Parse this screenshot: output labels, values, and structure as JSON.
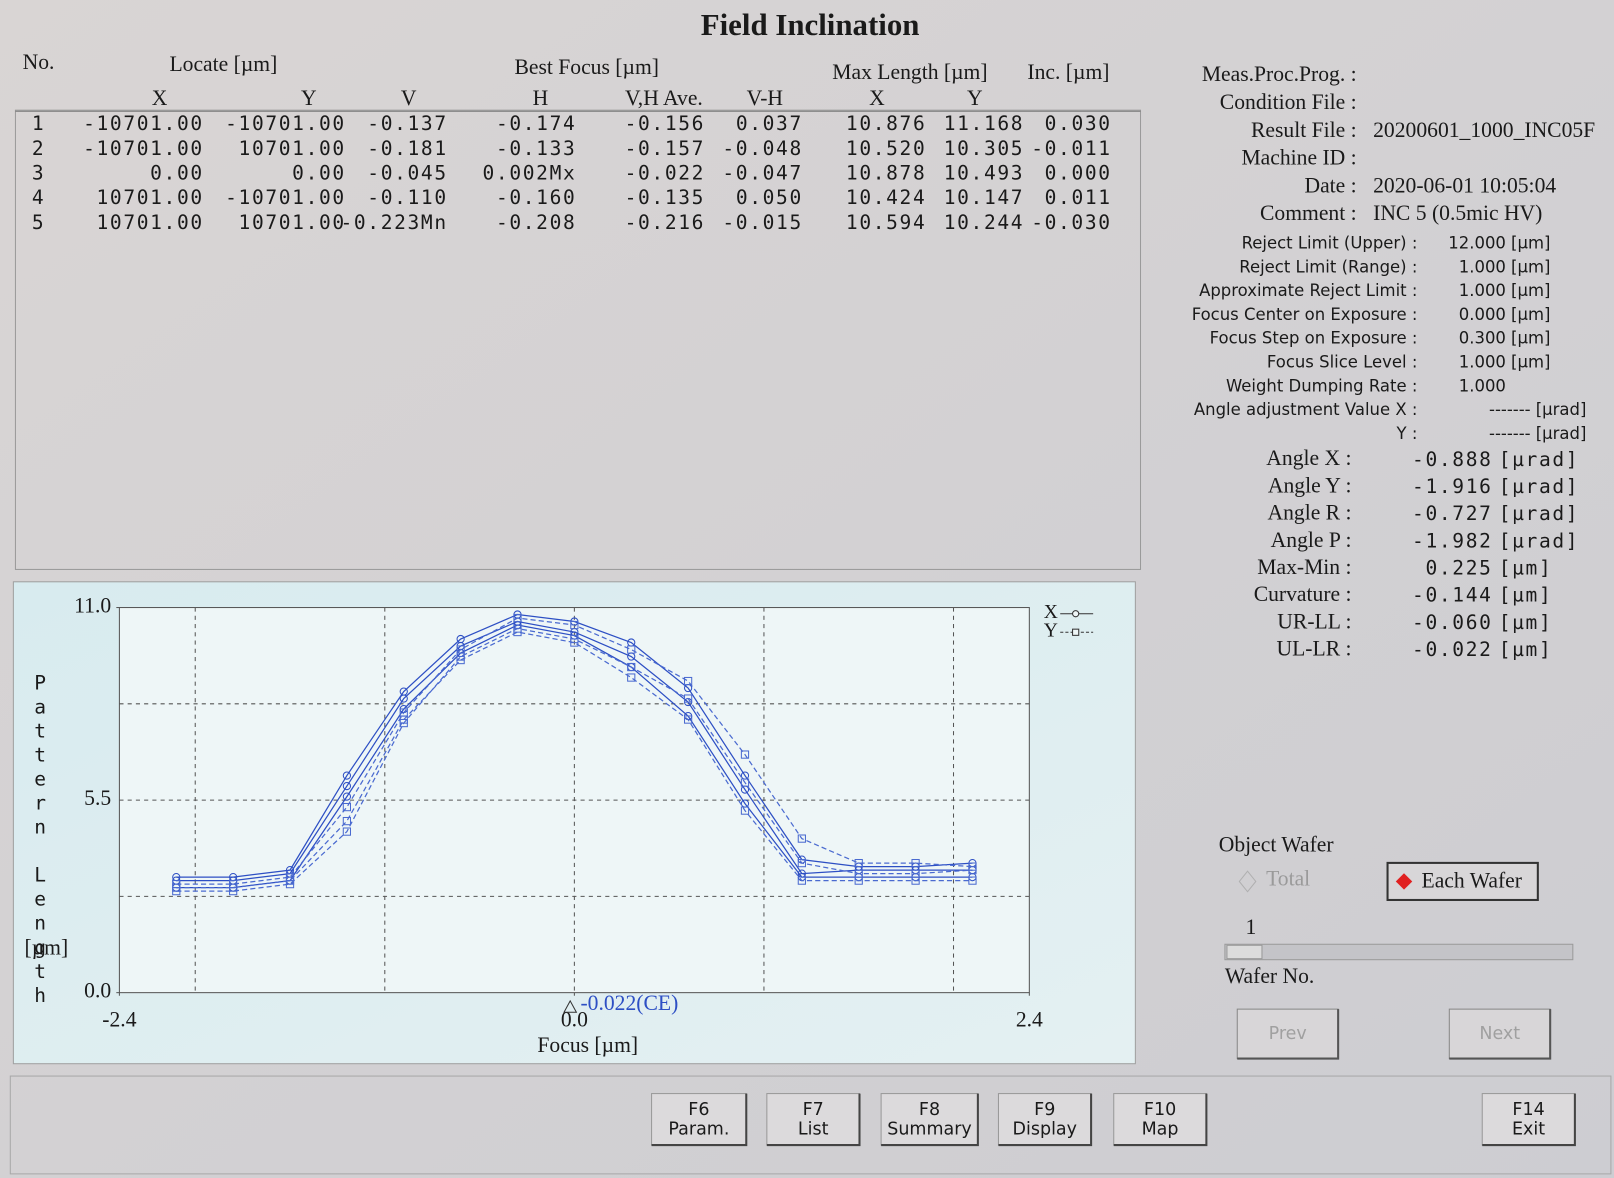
{
  "title": "Field Inclination",
  "table": {
    "header": {
      "no": "No.",
      "locate": "Locate [µm]",
      "best_focus": "Best Focus [µm]",
      "max_length": "Max Length [µm]",
      "inc": "Inc. [µm]",
      "columns": [
        "X",
        "Y",
        "V",
        "H",
        "V,H Ave.",
        "V-H",
        "X",
        "Y"
      ]
    },
    "rows": [
      [
        "1",
        "-10701.00",
        "-10701.00",
        "-0.137",
        "-0.174",
        "-0.156",
        "0.037",
        "10.876",
        "11.168",
        "0.030"
      ],
      [
        "2",
        "-10701.00",
        "10701.00",
        "-0.181",
        "-0.133",
        "-0.157",
        "-0.048",
        "10.520",
        "10.305",
        "-0.011"
      ],
      [
        "3",
        "0.00",
        "0.00",
        "-0.045",
        "0.002Mx",
        "-0.022",
        "-0.047",
        "10.878",
        "10.493",
        "0.000"
      ],
      [
        "4",
        "10701.00",
        "-10701.00",
        "-0.110",
        "-0.160",
        "-0.135",
        "0.050",
        "10.424",
        "10.147",
        "0.011"
      ],
      [
        "5",
        "10701.00",
        "10701.00",
        "-0.223Mn",
        "-0.208",
        "-0.216",
        "-0.015",
        "10.594",
        "10.244",
        "-0.030"
      ]
    ]
  },
  "info": {
    "files": [
      {
        "label": "Meas.Proc.Prog. :"
      },
      {
        "label": "Condition File :"
      },
      {
        "label": "Result File :",
        "value": "20200601_1000_INC05F"
      },
      {
        "label": "Machine ID :"
      },
      {
        "label": "Date :",
        "value": "2020-06-01 10:05:04"
      },
      {
        "label": "Comment :",
        "value": "INC 5 (0.5mic HV)"
      }
    ],
    "settings": [
      {
        "label": "Reject Limit (Upper) :",
        "value": "12.000",
        "unit": "[µm]"
      },
      {
        "label": "Reject Limit (Range) :",
        "value": "1.000",
        "unit": "[µm]"
      },
      {
        "label": "Approximate Reject Limit :",
        "value": "1.000",
        "unit": "[µm]"
      },
      {
        "label": "Focus Center on Exposure :",
        "value": "0.000",
        "unit": "[µm]"
      },
      {
        "label": "Focus Step on Exposure :",
        "value": "0.300",
        "unit": "[µm]"
      },
      {
        "label": "Focus Slice Level :",
        "value": "1.000",
        "unit": "[µm]"
      },
      {
        "label": "Weight Dumping Rate :",
        "value": "1.000"
      },
      {
        "label": "Angle adjustment Value X :",
        "value": "-------",
        "unit": "[µrad]"
      },
      {
        "label": "Y :",
        "value": "-------",
        "unit": "[µrad]"
      }
    ],
    "results": [
      {
        "label": "Angle X :",
        "value": "-0.888",
        "unit": "[µrad]"
      },
      {
        "label": "Angle Y :",
        "value": "-1.916",
        "unit": "[µrad]"
      },
      {
        "label": "Angle R :",
        "value": "-0.727",
        "unit": "[µrad]"
      },
      {
        "label": "Angle P :",
        "value": "-1.982",
        "unit": "[µrad]"
      },
      {
        "label": "Max-Min :",
        "value": "0.225",
        "unit": "[µm]"
      },
      {
        "label": "Curvature :",
        "value": "-0.144",
        "unit": "[µm]"
      },
      {
        "label": "UR-LL :",
        "value": "-0.060",
        "unit": "[µm]"
      },
      {
        "label": "UL-LR :",
        "value": "-0.022",
        "unit": "[µm]"
      }
    ]
  },
  "chart_data": {
    "type": "line",
    "x_label": "Focus [µm]",
    "y_label": "Pattern Length",
    "y_unit": "[µm]",
    "xlim": [
      -2.4,
      2.4
    ],
    "ylim": [
      0,
      11
    ],
    "xticks": [
      -2.4,
      {
        "value": 0,
        "label": "0.0"
      },
      2.4
    ],
    "yticks": [
      {
        "value": 0,
        "label": "0.0"
      },
      5.5,
      {
        "value": 11,
        "label": "11.0"
      }
    ],
    "xgrid": [
      -2,
      -1,
      0,
      1,
      2
    ],
    "ygrid": [
      2.75,
      8.25
    ],
    "x": [
      -2.1,
      -1.8,
      -1.5,
      -1.2,
      -0.9,
      -0.6,
      -0.3,
      0,
      0.3,
      0.6,
      0.9,
      1.2,
      1.5,
      1.8,
      2.1
    ],
    "series": [
      {
        "name": "X",
        "color": "#2d4fc4",
        "marker": "circle",
        "dash": false,
        "curves": [
          [
            3.2,
            3.2,
            3.4,
            5.9,
            8.4,
            9.9,
            10.6,
            10.3,
            9.6,
            8.3,
            5.8,
            3.4,
            3.5,
            3.5,
            3.5
          ],
          [
            3.0,
            3.0,
            3.2,
            5.6,
            8.1,
            9.7,
            10.5,
            10.2,
            9.3,
            7.9,
            5.4,
            3.3,
            3.3,
            3.3,
            3.3
          ],
          [
            3.3,
            3.3,
            3.5,
            6.2,
            8.6,
            10.1,
            10.8,
            10.6,
            10.0,
            8.7,
            6.2,
            3.8,
            3.6,
            3.6,
            3.7
          ]
        ]
      },
      {
        "name": "Y",
        "color": "#4a6ad0",
        "marker": "square",
        "dash": true,
        "curves": [
          [
            2.9,
            2.9,
            3.1,
            4.6,
            7.7,
            9.6,
            10.4,
            10.1,
            9.3,
            8.4,
            6.0,
            3.7,
            3.4,
            3.4,
            3.5
          ],
          [
            3.1,
            3.1,
            3.3,
            5.3,
            8.0,
            9.8,
            10.7,
            10.5,
            9.8,
            8.9,
            6.8,
            4.4,
            3.7,
            3.7,
            3.6
          ],
          [
            3.0,
            3.0,
            3.2,
            4.9,
            7.8,
            9.5,
            10.3,
            10.0,
            9.0,
            7.8,
            5.2,
            3.2,
            3.2,
            3.2,
            3.2
          ]
        ]
      }
    ],
    "annotation": {
      "value": -0.022,
      "label": "-0.022(CE)"
    }
  },
  "object_wafer": {
    "title": "Object Wafer",
    "options": [
      "Total",
      "Each Wafer"
    ],
    "selected": 1,
    "wafer_value": "1",
    "wafer_label": "Wafer No.",
    "prev": "Prev",
    "next": "Next"
  },
  "function_keys": [
    {
      "key": "F6",
      "label": "Param."
    },
    {
      "key": "F7",
      "label": "List"
    },
    {
      "key": "F8",
      "label": "Summary"
    },
    {
      "key": "F9",
      "label": "Display"
    },
    {
      "key": "F10",
      "label": "Map"
    },
    {
      "key": "F14",
      "label": "Exit"
    }
  ]
}
